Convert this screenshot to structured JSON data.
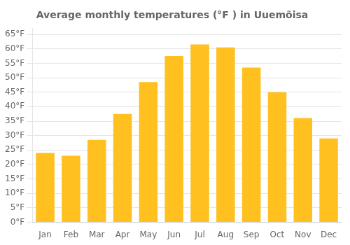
{
  "chart_data": {
    "type": "bar",
    "title": "Average monthly temperatures (°F ) in Uuemõisa",
    "categories": [
      "Jan",
      "Feb",
      "Mar",
      "Apr",
      "May",
      "Jun",
      "Jul",
      "Aug",
      "Sep",
      "Oct",
      "Nov",
      "Dec"
    ],
    "values": [
      24,
      23,
      28.5,
      37.5,
      48.5,
      57.5,
      61.5,
      60.5,
      53.5,
      45,
      36,
      29
    ],
    "color": "#FFC020",
    "ylim": [
      0,
      67
    ],
    "yticks": [
      {
        "value": 0,
        "label": "0°F"
      },
      {
        "value": 5,
        "label": "5°F"
      },
      {
        "value": 10,
        "label": "10°F"
      },
      {
        "value": 15,
        "label": "15°F"
      },
      {
        "value": 20,
        "label": "20°F"
      },
      {
        "value": 25,
        "label": "25°F"
      },
      {
        "value": 30,
        "label": "30°F"
      },
      {
        "value": 35,
        "label": "35°F"
      },
      {
        "value": 40,
        "label": "40°F"
      },
      {
        "value": 45,
        "label": "45°F"
      },
      {
        "value": 50,
        "label": "50°F"
      },
      {
        "value": 55,
        "label": "55°F"
      },
      {
        "value": 60,
        "label": "60°F"
      },
      {
        "value": 65,
        "label": "65°F"
      }
    ],
    "grid": true
  }
}
